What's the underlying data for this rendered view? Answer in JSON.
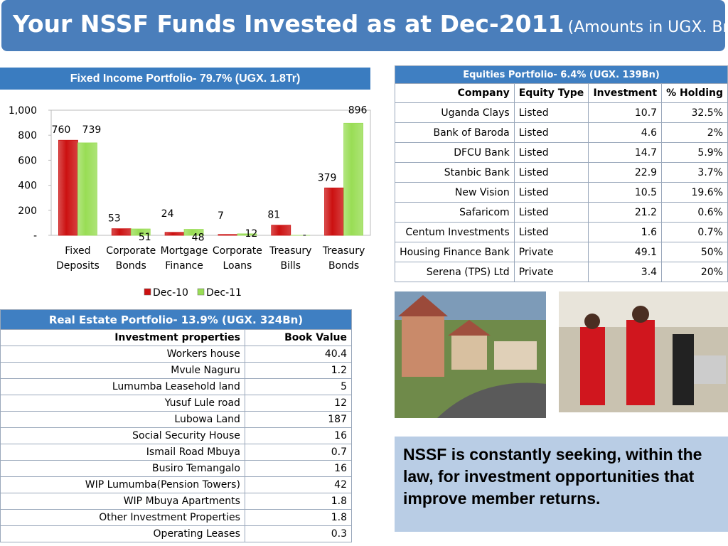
{
  "header": {
    "title": "Your NSSF Funds Invested as at Dec-2011",
    "subtitle": "(Amounts in UGX. Bn)"
  },
  "chart_data": {
    "type": "bar",
    "title": "Fixed Income Portfolio- 79.7% (UGX. 1.8Tr)",
    "categories": [
      "Fixed Deposits",
      "Corporate Bonds",
      "Mortgage Finance",
      "Corporate Loans",
      "Treasury Bills",
      "Treasury Bonds"
    ],
    "series": [
      {
        "name": "Dec-10",
        "color": "#cc1111",
        "values": [
          760,
          53,
          24,
          7,
          81,
          379
        ]
      },
      {
        "name": "Dec-11",
        "color": "#99dd55",
        "values": [
          739,
          51,
          48,
          12,
          0,
          896
        ],
        "value_labels": [
          "739",
          "51",
          "48",
          "12",
          "-",
          "896"
        ]
      }
    ],
    "ylim": [
      0,
      1000
    ],
    "yticks": [
      {
        "value": 0,
        "label": "-"
      },
      200,
      400,
      600,
      800,
      {
        "value": 1000,
        "label": "1,000"
      }
    ],
    "grid": false,
    "legend": "bottom"
  },
  "equities": {
    "title": "Equities Portfolio- 6.4% (UGX. 139Bn)",
    "columns": [
      "Company",
      "Equity Type",
      "Investment",
      "% Holding"
    ],
    "rows": [
      [
        "Uganda Clays",
        "Listed",
        "10.7",
        "32.5%"
      ],
      [
        "Bank of Baroda",
        "Listed",
        "4.6",
        "2%"
      ],
      [
        "DFCU Bank",
        "Listed",
        "14.7",
        "5.9%"
      ],
      [
        "Stanbic Bank",
        "Listed",
        "22.9",
        "3.7%"
      ],
      [
        "New Vision",
        "Listed",
        "10.5",
        "19.6%"
      ],
      [
        "Safaricom",
        "Listed",
        "21.2",
        "0.6%"
      ],
      [
        "Centum Investments",
        "Listed",
        "1.6",
        "0.7%"
      ],
      [
        "Housing Finance Bank",
        "Private",
        "49.1",
        "50%"
      ],
      [
        "Serena (TPS) Ltd",
        "Private",
        "3.4",
        "20%"
      ]
    ]
  },
  "real_estate": {
    "title": "Real Estate Portfolio- 13.9% (UGX. 324Bn)",
    "columns": [
      "Investment properties",
      "Book Value"
    ],
    "rows": [
      [
        "Workers house",
        "40.4"
      ],
      [
        "Mvule Naguru",
        "1.2"
      ],
      [
        "Lumumba Leasehold land",
        "5"
      ],
      [
        "Yusuf Lule road",
        "12"
      ],
      [
        "Lubowa Land",
        "187"
      ],
      [
        "Social Security House",
        "16"
      ],
      [
        "Ismail Road Mbuya",
        "0.7"
      ],
      [
        "Busiro Temangalo",
        "16"
      ],
      [
        "WIP Lumumba(Pension Towers)",
        "42"
      ],
      [
        "WIP Mbuya Apartments",
        "1.8"
      ],
      [
        "Other Investment Properties",
        "1.8"
      ],
      [
        "Operating Leases",
        "0.3"
      ]
    ]
  },
  "note": "NSSF is constantly seeking, within the law,  for investment opportunities that improve member returns."
}
